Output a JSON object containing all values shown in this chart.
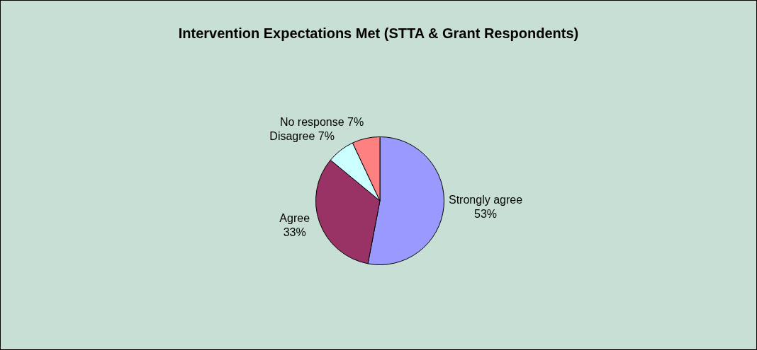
{
  "chart_data": {
    "type": "pie",
    "title": "Intervention Expectations Met (STTA & Grant Respondents)",
    "categories": [
      "Strongly agree",
      "Agree",
      "Disagree",
      "No response"
    ],
    "values": [
      53,
      33,
      7,
      7
    ],
    "value_labels": [
      "53%",
      "33%",
      "7%",
      "7%"
    ],
    "colors": [
      "#9999ff",
      "#993366",
      "#ccffff",
      "#ff8080"
    ],
    "legend": false
  }
}
